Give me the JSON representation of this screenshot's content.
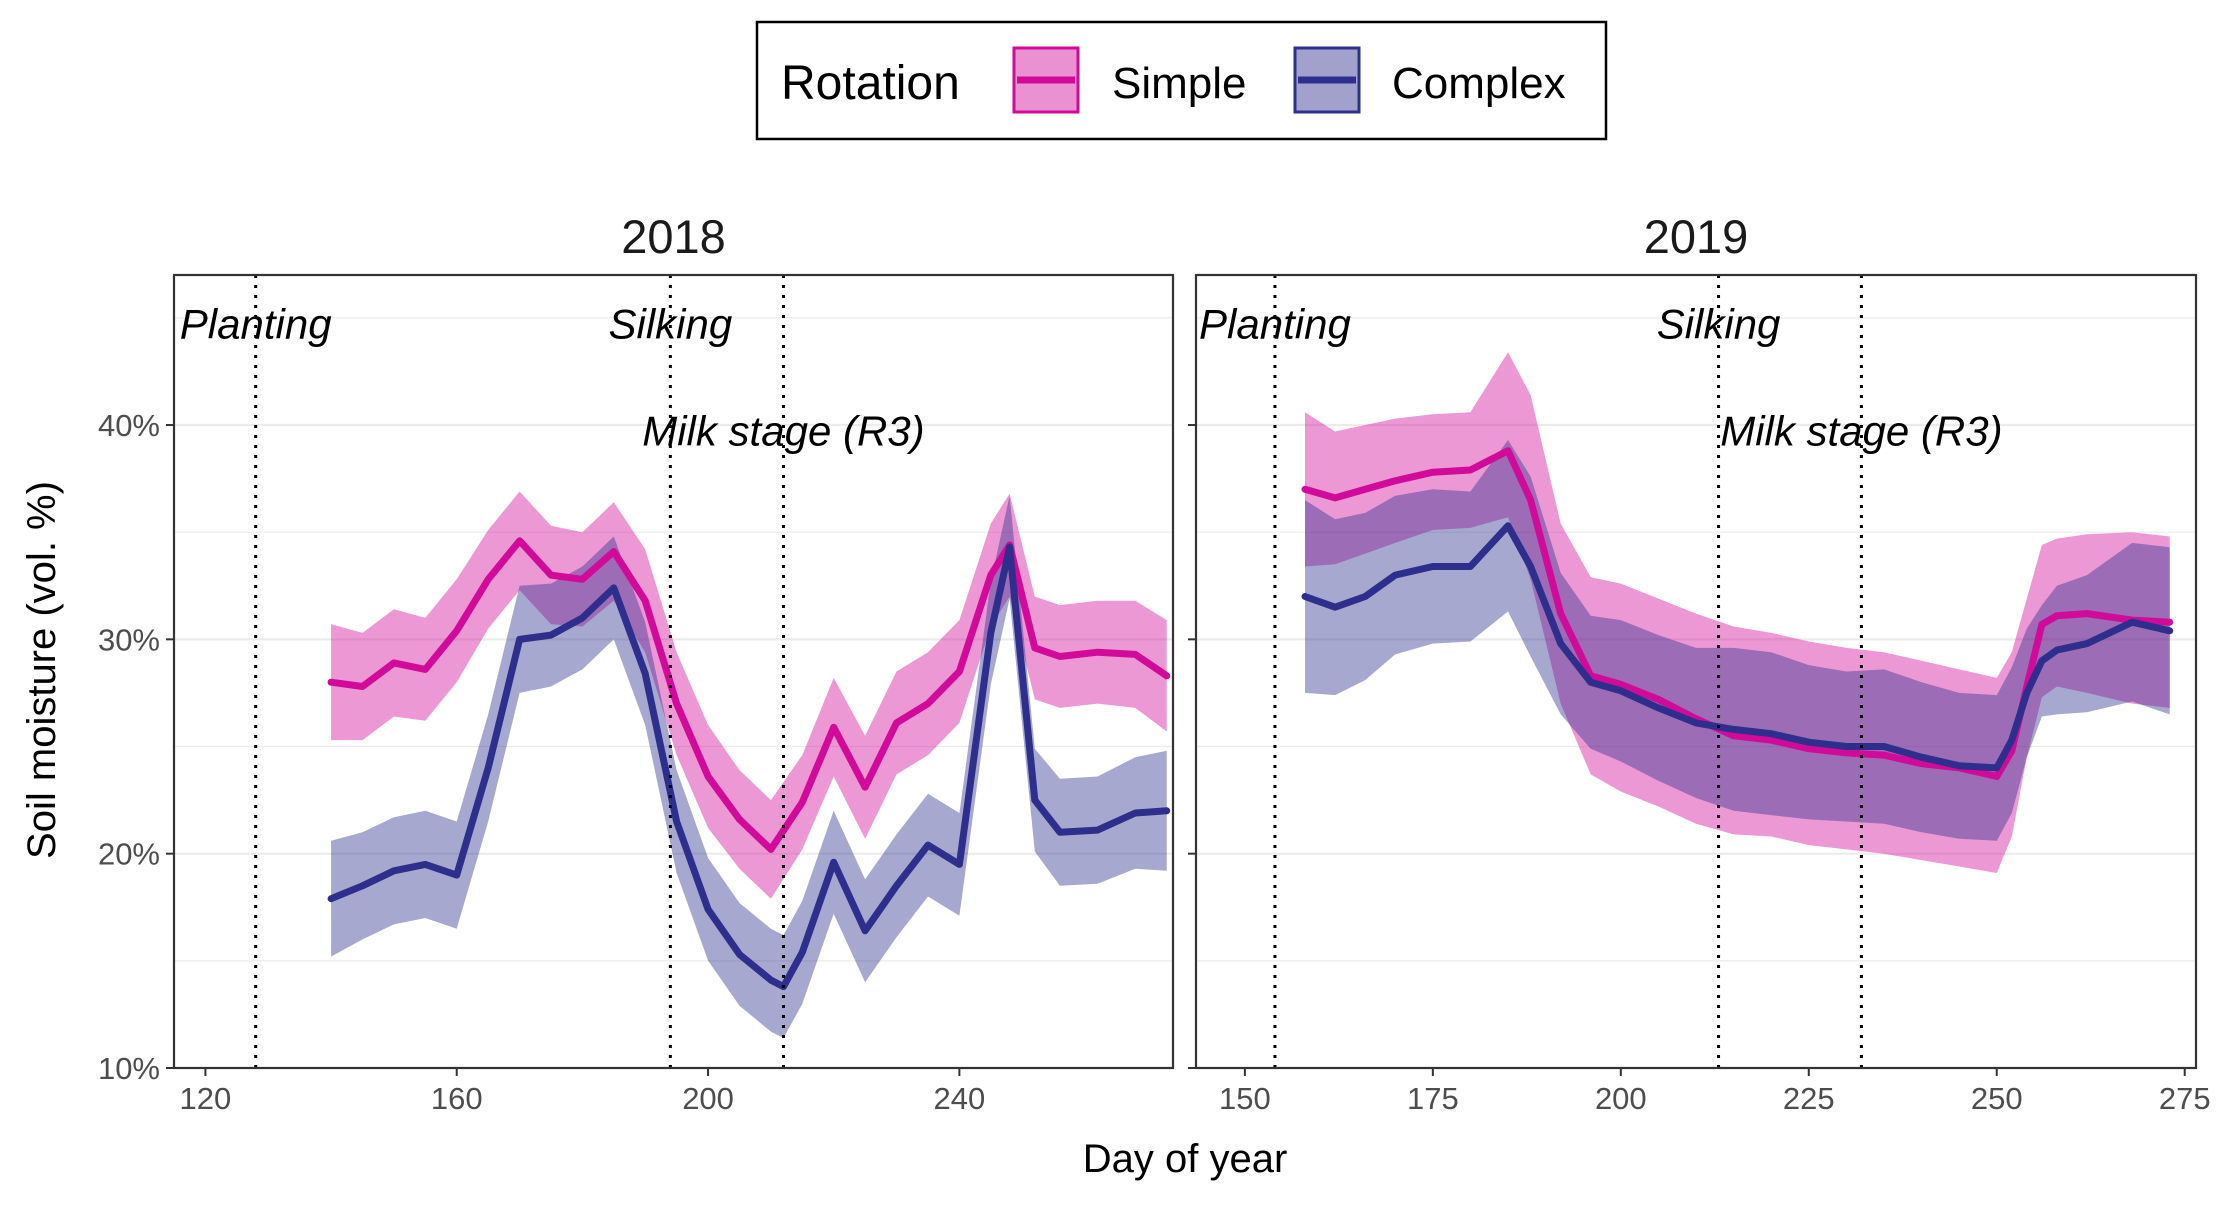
{
  "legend": {
    "title": "Rotation",
    "position": "top"
  },
  "axes": {
    "xlabel": "Day of year",
    "ylabel": "Soil moisture (vol. %)"
  },
  "colors": {
    "Simple": "#d10a9a",
    "Complex": "#2e2f8c"
  },
  "chart_data": [
    {
      "type": "line",
      "panel": "2018",
      "xlim": [
        115,
        274
      ],
      "ylim": [
        10,
        47
      ],
      "x_ticks": [
        120,
        160,
        200,
        240
      ],
      "y_ticks": [
        10,
        20,
        30,
        40
      ],
      "y_tick_labels": [
        "10%",
        "20%",
        "30%",
        "40%"
      ],
      "grid": true,
      "annotations": [
        {
          "label": "Planting",
          "x": 128,
          "label_y": 44.7
        },
        {
          "label": "Silking",
          "x": 194,
          "label_y": 44.7
        },
        {
          "label": "Milk stage (R3)",
          "x": 212,
          "label_y": 39.7
        }
      ],
      "series": [
        {
          "name": "Simple",
          "x": [
            140,
            145,
            150,
            155,
            160,
            165,
            170,
            175,
            180,
            185,
            190,
            195,
            200,
            205,
            210,
            215,
            220,
            225,
            230,
            235,
            240,
            245,
            248,
            252,
            256,
            262,
            268,
            273
          ],
          "y": [
            28.0,
            27.8,
            28.9,
            28.6,
            30.4,
            32.8,
            34.6,
            33.0,
            32.8,
            34.1,
            31.8,
            27.0,
            23.6,
            21.6,
            20.2,
            22.4,
            25.9,
            23.1,
            26.1,
            27.0,
            28.5,
            33.0,
            34.4,
            29.6,
            29.2,
            29.4,
            29.3,
            28.3
          ],
          "lower": [
            25.3,
            25.3,
            26.4,
            26.2,
            28.0,
            30.5,
            32.3,
            30.7,
            30.6,
            31.8,
            29.4,
            24.6,
            21.2,
            19.3,
            17.9,
            20.2,
            23.6,
            20.7,
            23.7,
            24.6,
            26.1,
            30.6,
            32.0,
            27.2,
            26.8,
            27.0,
            26.8,
            25.7
          ],
          "upper": [
            30.7,
            30.3,
            31.4,
            31.0,
            32.8,
            35.1,
            36.9,
            35.3,
            35.0,
            36.4,
            34.2,
            29.4,
            26.0,
            23.9,
            22.5,
            24.6,
            28.2,
            25.5,
            28.5,
            29.4,
            30.9,
            35.4,
            36.8,
            32.0,
            31.6,
            31.8,
            31.8,
            30.9
          ]
        },
        {
          "name": "Complex",
          "x": [
            140,
            145,
            150,
            155,
            160,
            165,
            170,
            175,
            180,
            185,
            190,
            195,
            200,
            205,
            210,
            212,
            215,
            220,
            225,
            230,
            235,
            240,
            245,
            248,
            252,
            256,
            262,
            268,
            273
          ],
          "y": [
            17.9,
            18.5,
            19.2,
            19.5,
            19.0,
            24.0,
            30.0,
            30.2,
            31.0,
            32.4,
            28.4,
            21.5,
            17.4,
            15.3,
            14.1,
            13.8,
            15.4,
            19.6,
            16.4,
            18.5,
            20.4,
            19.5,
            30.3,
            34.3,
            22.5,
            21.0,
            21.1,
            21.9,
            22.0
          ],
          "lower": [
            15.2,
            16.0,
            16.7,
            17.0,
            16.5,
            21.5,
            27.5,
            27.8,
            28.6,
            30.0,
            26.0,
            19.1,
            15.0,
            12.9,
            11.7,
            11.4,
            13.0,
            17.2,
            14.0,
            16.1,
            18.0,
            17.1,
            27.9,
            31.9,
            20.1,
            18.5,
            18.6,
            19.3,
            19.2
          ],
          "upper": [
            20.6,
            21.0,
            21.7,
            22.0,
            21.5,
            26.5,
            32.5,
            32.6,
            33.4,
            34.8,
            30.8,
            23.9,
            19.8,
            17.7,
            16.5,
            16.2,
            17.8,
            22.0,
            18.8,
            20.9,
            22.8,
            21.9,
            32.7,
            36.7,
            24.9,
            23.5,
            23.6,
            24.5,
            24.8
          ]
        }
      ]
    },
    {
      "type": "line",
      "panel": "2019",
      "xlim": [
        143.5,
        276.5
      ],
      "ylim": [
        10,
        47
      ],
      "x_ticks": [
        150,
        175,
        200,
        225,
        250,
        275
      ],
      "y_ticks": [
        10,
        20,
        30,
        40
      ],
      "y_tick_labels": [
        "10%",
        "20%",
        "30%",
        "40%"
      ],
      "grid": true,
      "annotations": [
        {
          "label": "Planting",
          "x": 154,
          "label_y": 44.7
        },
        {
          "label": "Silking",
          "x": 213,
          "label_y": 44.7
        },
        {
          "label": "Milk stage (R3)",
          "x": 232,
          "label_y": 39.7
        }
      ],
      "series": [
        {
          "name": "Simple",
          "x": [
            158,
            162,
            166,
            170,
            175,
            180,
            185,
            188,
            192,
            196,
            200,
            205,
            210,
            215,
            220,
            225,
            230,
            235,
            240,
            245,
            250,
            252,
            254,
            256,
            258,
            262,
            268,
            273
          ],
          "y": [
            37.0,
            36.6,
            37.0,
            37.4,
            37.8,
            37.9,
            38.8,
            36.5,
            31.2,
            28.3,
            27.9,
            27.2,
            26.3,
            25.5,
            25.3,
            24.9,
            24.7,
            24.6,
            24.2,
            24.0,
            23.6,
            24.8,
            27.8,
            30.7,
            31.1,
            31.2,
            30.9,
            30.8
          ],
          "lower": [
            33.4,
            33.5,
            34.0,
            34.5,
            35.1,
            35.2,
            35.7,
            32.8,
            27.0,
            23.7,
            22.9,
            22.2,
            21.4,
            20.9,
            20.8,
            20.4,
            20.2,
            20.0,
            19.7,
            19.4,
            19.1,
            20.8,
            24.5,
            27.3,
            27.8,
            27.5,
            27.0,
            26.8
          ],
          "upper": [
            40.6,
            39.7,
            40.0,
            40.3,
            40.5,
            40.6,
            43.4,
            41.4,
            35.4,
            32.9,
            32.6,
            31.9,
            31.2,
            30.6,
            30.3,
            29.9,
            29.6,
            29.4,
            29.0,
            28.6,
            28.2,
            29.4,
            31.9,
            34.4,
            34.7,
            34.9,
            35.0,
            34.8
          ]
        },
        {
          "name": "Complex",
          "x": [
            158,
            162,
            166,
            170,
            175,
            180,
            185,
            188,
            192,
            196,
            200,
            205,
            210,
            215,
            220,
            225,
            230,
            235,
            240,
            245,
            250,
            252,
            254,
            256,
            258,
            262,
            268,
            273
          ],
          "y": [
            32.0,
            31.5,
            32.0,
            33.0,
            33.4,
            33.4,
            35.3,
            33.4,
            29.8,
            28.0,
            27.6,
            26.8,
            26.1,
            25.8,
            25.6,
            25.2,
            25.0,
            25.0,
            24.5,
            24.1,
            24.0,
            25.3,
            27.5,
            29.0,
            29.5,
            29.8,
            30.8,
            30.4
          ],
          "lower": [
            27.5,
            27.4,
            28.1,
            29.3,
            29.8,
            29.9,
            31.3,
            29.2,
            26.5,
            24.9,
            24.3,
            23.4,
            22.6,
            22.0,
            21.8,
            21.6,
            21.5,
            21.4,
            21.0,
            20.7,
            20.6,
            21.9,
            24.5,
            26.4,
            26.5,
            26.6,
            27.1,
            26.5
          ],
          "upper": [
            36.5,
            35.6,
            35.9,
            36.7,
            37.0,
            36.9,
            39.3,
            37.6,
            33.1,
            31.1,
            30.9,
            30.2,
            29.6,
            29.6,
            29.4,
            28.8,
            28.5,
            28.6,
            28.0,
            27.5,
            27.4,
            28.7,
            30.5,
            31.6,
            32.5,
            33.0,
            34.5,
            34.3
          ]
        }
      ]
    }
  ]
}
